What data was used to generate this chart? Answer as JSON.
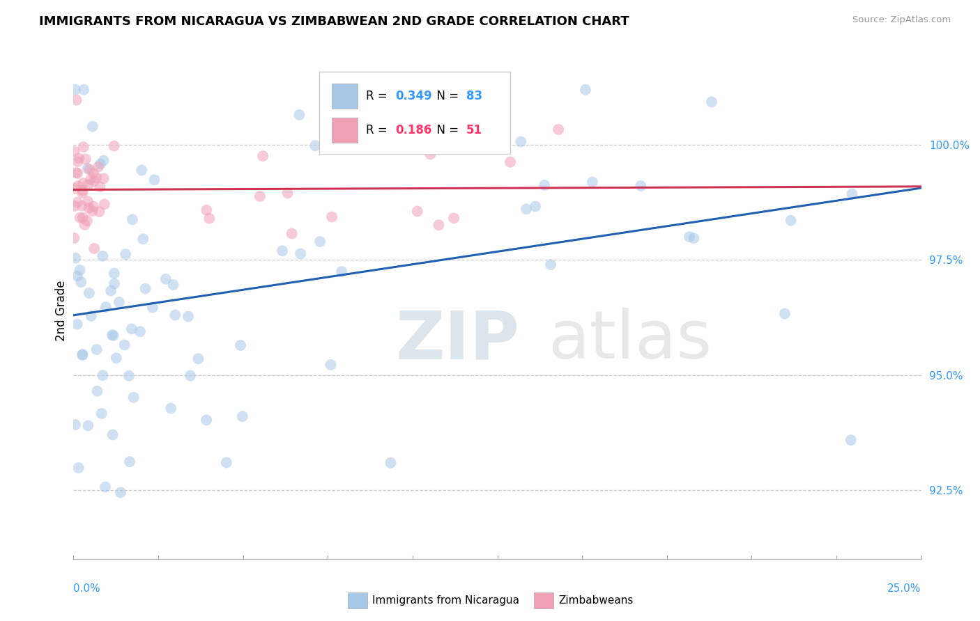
{
  "title": "IMMIGRANTS FROM NICARAGUA VS ZIMBABWEAN 2ND GRADE CORRELATION CHART",
  "source": "Source: ZipAtlas.com",
  "ylabel": "2nd Grade",
  "yticks": [
    92.5,
    95.0,
    97.5,
    100.0
  ],
  "ytick_labels": [
    "92.5%",
    "95.0%",
    "97.5%",
    "100.0%"
  ],
  "xmin": 0.0,
  "xmax": 25.0,
  "ymin": 91.0,
  "ymax": 101.8,
  "blue_R": 0.349,
  "blue_N": 83,
  "pink_R": 0.186,
  "pink_N": 51,
  "blue_scatter_color": "#A8C8E8",
  "pink_scatter_color": "#F0A0B5",
  "blue_line_color": "#2060B0",
  "pink_line_color": "#CC3355",
  "legend_r_color_blue": "#3399FF",
  "legend_r_color_pink": "#FF3366",
  "tick_color": "#3399FF",
  "grid_color": "#CCCCCC",
  "title_fontsize": 13,
  "axis_fontsize": 11,
  "scatter_size": 130,
  "scatter_alpha": 0.55
}
